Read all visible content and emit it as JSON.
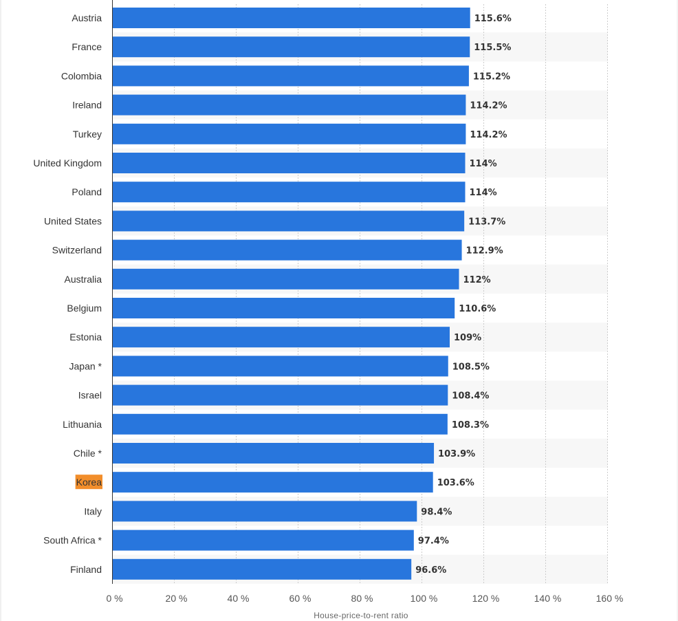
{
  "chart_data": {
    "type": "bar",
    "orientation": "horizontal",
    "categories": [
      "Austria",
      "France",
      "Colombia",
      "Ireland",
      "Turkey",
      "United Kingdom",
      "Poland",
      "United States",
      "Switzerland",
      "Australia",
      "Belgium",
      "Estonia",
      "Japan *",
      "Israel",
      "Lithuania",
      "Chile *",
      "Korea",
      "Italy",
      "South Africa *",
      "Finland"
    ],
    "values": [
      115.6,
      115.5,
      115.2,
      114.2,
      114.2,
      114,
      114,
      113.7,
      112.9,
      112,
      110.6,
      109,
      108.5,
      108.4,
      108.3,
      103.9,
      103.6,
      98.4,
      97.4,
      96.6
    ],
    "value_labels": [
      "115.6%",
      "115.5%",
      "115.2%",
      "114.2%",
      "114.2%",
      "114%",
      "114%",
      "113.7%",
      "112.9%",
      "112%",
      "110.6%",
      "109%",
      "108.5%",
      "108.4%",
      "108.3%",
      "103.9%",
      "103.6%",
      "98.4%",
      "97.4%",
      "96.6%"
    ],
    "highlighted_category": "Korea",
    "xlim": [
      0,
      160
    ],
    "x_ticks": [
      0,
      20,
      40,
      60,
      80,
      100,
      120,
      140,
      160
    ],
    "x_tick_labels": [
      "0 %",
      "20 %",
      "40 %",
      "60 %",
      "80 %",
      "100 %",
      "120 %",
      "140 %",
      "160 %"
    ],
    "xlabel": "House-price-to-rent ratio",
    "ylabel": "",
    "title": "",
    "grid": true,
    "grid_style": "dashed",
    "alternating_row_bands": true,
    "colors": {
      "bar": "#2876dd",
      "highlight_label_bg": "#f28e2b",
      "row_band": "#f7f7f7",
      "grid": "#cccccc",
      "axis": "#333333",
      "text": "#333333"
    }
  }
}
